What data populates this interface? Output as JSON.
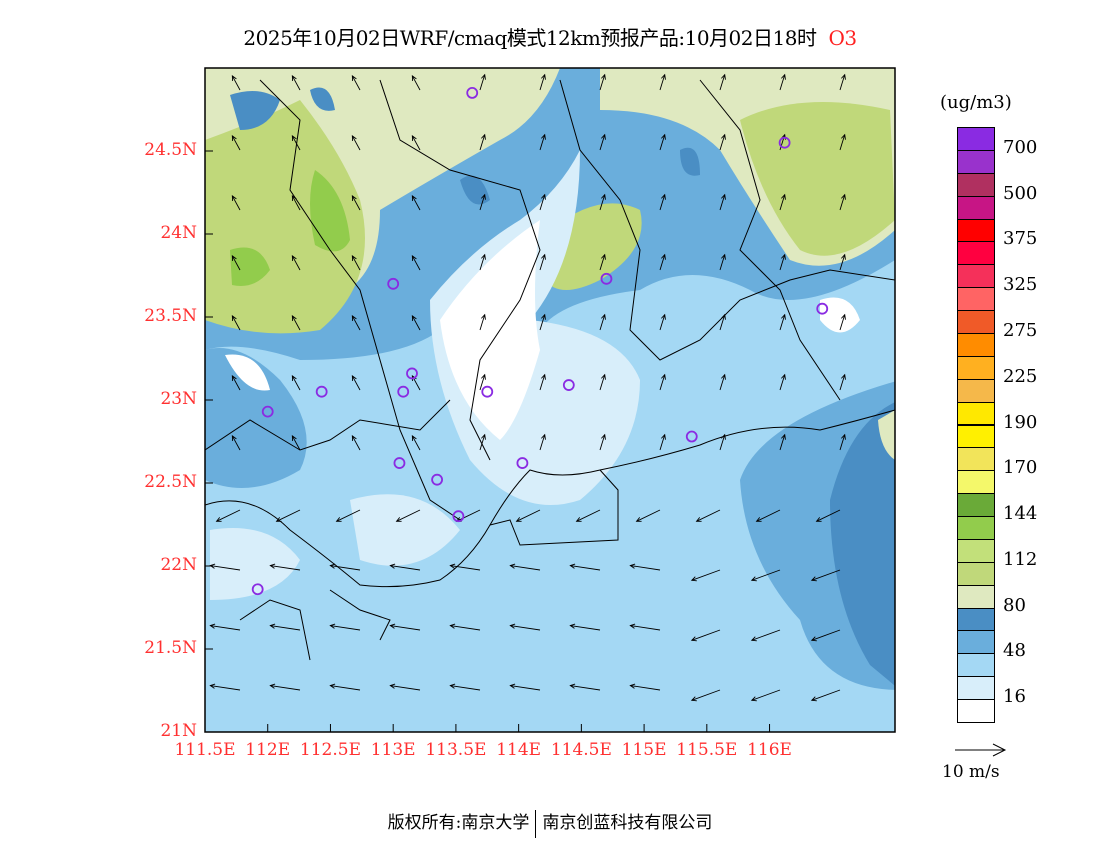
{
  "title": {
    "main": "2025年10月02日WRF/cmaq模式12km预报产品:10月02日18时",
    "species": "O3"
  },
  "axes": {
    "lat_labels": [
      "24.5N",
      "24N",
      "23.5N",
      "23N",
      "22.5N",
      "22N",
      "21.5N",
      "21N"
    ],
    "lat_values": [
      24.5,
      24,
      23.5,
      23,
      22.5,
      22,
      21.5,
      21
    ],
    "lon_labels": [
      "111.5E",
      "112E",
      "112.5E",
      "113E",
      "113.5E",
      "114E",
      "114.5E",
      "115E",
      "115.5E",
      "116E"
    ],
    "lon_values": [
      111.5,
      112,
      112.5,
      113,
      113.5,
      114,
      114.5,
      115,
      115.5,
      116
    ],
    "lon_range": [
      111.5,
      117.0
    ],
    "lat_range": [
      21.0,
      25.0
    ]
  },
  "legend": {
    "unit": "(ug/m3)",
    "colors": [
      "#8a2be2",
      "#9932cc",
      "#b03060",
      "#c71585",
      "#ff0000",
      "#ff0040",
      "#f5305a",
      "#ff6464",
      "#f05a28",
      "#ff8c00",
      "#ffb020",
      "#f5b84a",
      "#ffe800",
      "#fff000",
      "#f2e45a",
      "#f4f86a",
      "#6aaa38",
      "#92cc4c",
      "#c2e07a",
      "#c0d87a",
      "#dfe9c0",
      "#4a8ec4",
      "#6aaedc",
      "#a4d8f4",
      "#d8eefa",
      "#ffffff"
    ],
    "labels": [
      "700",
      "500",
      "375",
      "325",
      "275",
      "225",
      "190",
      "170",
      "144",
      "112",
      "80",
      "48",
      "16"
    ],
    "reference_vector": "10 m/s"
  },
  "stations": [
    [
      112.0,
      22.93
    ],
    [
      111.92,
      21.86
    ],
    [
      112.43,
      23.05
    ],
    [
      113.0,
      23.7
    ],
    [
      113.08,
      23.05
    ],
    [
      113.15,
      23.16
    ],
    [
      113.05,
      22.62
    ],
    [
      113.35,
      22.52
    ],
    [
      113.52,
      22.3
    ],
    [
      113.75,
      23.05
    ],
    [
      114.03,
      22.62
    ],
    [
      114.4,
      23.09
    ],
    [
      114.7,
      23.73
    ],
    [
      113.63,
      24.85
    ],
    [
      115.38,
      22.78
    ],
    [
      116.12,
      24.55
    ],
    [
      116.42,
      23.55
    ]
  ],
  "footer": {
    "left": "版权所有:南京大学",
    "right": "南京创蓝科技有限公司"
  }
}
